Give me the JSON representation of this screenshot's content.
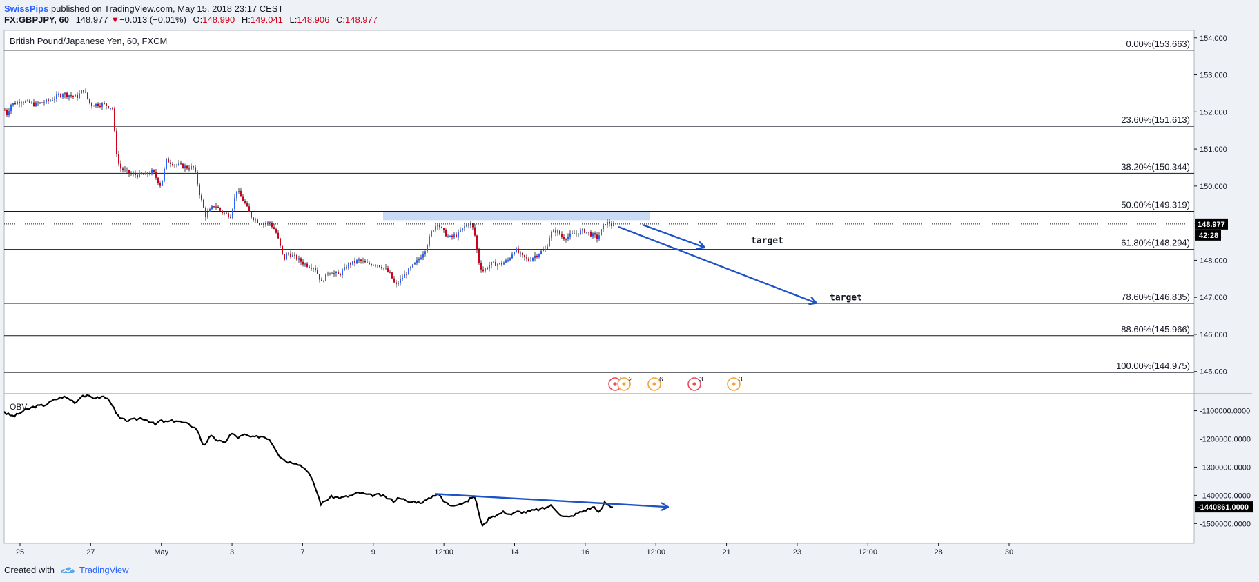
{
  "header": {
    "author": "SwissPips",
    "published": "published on TradingView.com, May 15, 2018 23:17 CEST",
    "symbol": "FX:GBPJPY, 60",
    "last": "148.977",
    "change_arrow": "▼",
    "change": "−0.013 (−0.01%)",
    "o_label": "O:",
    "o": "148.990",
    "h_label": "H:",
    "h": "149.041",
    "l_label": "L:",
    "l": "148.906",
    "c_label": "C:",
    "c": "148.977"
  },
  "footer": {
    "created_with": "Created with",
    "brand": "TradingView"
  },
  "colors": {
    "up": "#2962ff",
    "down": "#d0021b",
    "annotation": "#1e53c8",
    "zone": "#b8ccf0",
    "fib": "#131722",
    "obv": "#000000",
    "event_red": "#e54b5c",
    "event_orange": "#f3a33a"
  },
  "chart_data": [
    {
      "type": "candlestick",
      "title": "British Pound/Japanese Yen, 60, FXCM",
      "ylim": [
        144.4,
        154.2
      ],
      "yticks": [
        "154.000",
        "153.000",
        "152.000",
        "151.000",
        "150.000",
        "149.000",
        "148.000",
        "147.000",
        "146.000",
        "145.000"
      ],
      "last_price_label": "148.977",
      "countdown_label": "42:28",
      "x_labels": [
        "25",
        "27",
        "May",
        "3",
        "7",
        "9",
        "12:00",
        "14",
        "16",
        "12:00",
        "21",
        "23",
        "12:00",
        "28",
        "30"
      ],
      "price_path": [
        [
          0,
          152.5
        ],
        [
          8,
          151.9
        ],
        [
          15,
          152.2
        ],
        [
          30,
          152.3
        ],
        [
          50,
          152.2
        ],
        [
          70,
          152.3
        ],
        [
          90,
          152.5
        ],
        [
          110,
          152.4
        ],
        [
          120,
          152.6
        ],
        [
          130,
          152.2
        ],
        [
          150,
          152.2
        ],
        [
          162,
          152.1
        ],
        [
          167,
          151.0
        ],
        [
          172,
          150.5
        ],
        [
          190,
          150.3
        ],
        [
          210,
          150.3
        ],
        [
          220,
          150.4
        ],
        [
          232,
          150.0
        ],
        [
          240,
          150.7
        ],
        [
          250,
          150.6
        ],
        [
          270,
          150.5
        ],
        [
          280,
          150.5
        ],
        [
          288,
          149.8
        ],
        [
          297,
          149.2
        ],
        [
          310,
          149.5
        ],
        [
          320,
          149.3
        ],
        [
          333,
          149.2
        ],
        [
          342,
          149.9
        ],
        [
          352,
          149.6
        ],
        [
          362,
          149.2
        ],
        [
          375,
          149.0
        ],
        [
          390,
          149.0
        ],
        [
          398,
          148.8
        ],
        [
          403,
          148.5
        ],
        [
          410,
          148.0
        ],
        [
          415,
          148.2
        ],
        [
          425,
          148.1
        ],
        [
          440,
          147.9
        ],
        [
          455,
          147.8
        ],
        [
          465,
          147.4
        ],
        [
          475,
          147.7
        ],
        [
          490,
          147.6
        ],
        [
          505,
          147.9
        ],
        [
          520,
          148.0
        ],
        [
          530,
          147.9
        ],
        [
          545,
          147.9
        ],
        [
          555,
          147.8
        ],
        [
          565,
          147.6
        ],
        [
          572,
          147.3
        ],
        [
          580,
          147.5
        ],
        [
          595,
          147.8
        ],
        [
          605,
          148.0
        ],
        [
          615,
          148.3
        ],
        [
          625,
          148.8
        ],
        [
          633,
          149.0
        ],
        [
          640,
          148.8
        ],
        [
          650,
          148.6
        ],
        [
          662,
          148.7
        ],
        [
          672,
          148.9
        ],
        [
          680,
          149.0
        ],
        [
          686,
          148.8
        ],
        [
          692,
          148.0
        ],
        [
          698,
          147.7
        ],
        [
          710,
          147.9
        ],
        [
          725,
          147.9
        ],
        [
          735,
          148.0
        ],
        [
          745,
          148.3
        ],
        [
          755,
          148.1
        ],
        [
          765,
          148.0
        ],
        [
          780,
          148.2
        ],
        [
          790,
          148.3
        ],
        [
          796,
          148.7
        ],
        [
          805,
          148.8
        ],
        [
          815,
          148.6
        ],
        [
          830,
          148.7
        ],
        [
          845,
          148.8
        ],
        [
          855,
          148.7
        ],
        [
          865,
          148.6
        ],
        [
          870,
          148.8
        ],
        [
          875,
          149.0
        ],
        [
          882,
          149.0
        ],
        [
          888,
          148.9
        ]
      ],
      "fibonacci": [
        {
          "label": "0.00%(153.663)",
          "value": 153.663
        },
        {
          "label": "23.60%(151.613)",
          "value": 151.613
        },
        {
          "label": "38.20%(150.344)",
          "value": 150.344
        },
        {
          "label": "50.00%(149.319)",
          "value": 149.319
        },
        {
          "label": "61.80%(148.294)",
          "value": 148.294
        },
        {
          "label": "78.60%(146.835)",
          "value": 146.835
        },
        {
          "label": "88.60%(145.966)",
          "value": 145.966
        },
        {
          "label": "100.00%(144.975)",
          "value": 144.975
        }
      ],
      "resistance_zone": {
        "from_x": 555,
        "to_x": 942,
        "low": 149.08,
        "high": 149.3
      },
      "arrows": [
        {
          "x1": 932,
          "y1": 148.95,
          "x2": 1020,
          "y2": 148.35
        },
        {
          "x1": 896,
          "y1": 148.9,
          "x2": 1182,
          "y2": 146.85
        }
      ],
      "annotations": [
        {
          "text": "target",
          "x": 1088,
          "y": 148.45
        },
        {
          "text": "target",
          "x": 1202,
          "y": 146.92
        }
      ],
      "events": [
        {
          "x": 891,
          "count": "5",
          "color": "red"
        },
        {
          "x": 904,
          "count": "2",
          "color": "orange"
        },
        {
          "x": 948,
          "count": "6",
          "color": "orange"
        },
        {
          "x": 1006,
          "count": "3",
          "color": "red"
        },
        {
          "x": 1063,
          "count": "3",
          "color": "orange"
        }
      ]
    },
    {
      "type": "line",
      "title": "OBV",
      "ylim": [
        -1570000,
        -1040000
      ],
      "yticks": [
        "-1100000.0000",
        "-1200000.0000",
        "-1300000.0000",
        "-1400000.0000",
        "-1500000.0000"
      ],
      "last_value_label": "-1440861.0000",
      "obv_path": [
        [
          0,
          -1075000
        ],
        [
          8,
          -1110000
        ],
        [
          20,
          -1120000
        ],
        [
          35,
          -1100000
        ],
        [
          50,
          -1085000
        ],
        [
          65,
          -1080000
        ],
        [
          80,
          -1060000
        ],
        [
          92,
          -1050000
        ],
        [
          100,
          -1058000
        ],
        [
          110,
          -1072000
        ],
        [
          118,
          -1045000
        ],
        [
          128,
          -1050000
        ],
        [
          140,
          -1055000
        ],
        [
          150,
          -1050000
        ],
        [
          160,
          -1065000
        ],
        [
          168,
          -1110000
        ],
        [
          175,
          -1130000
        ],
        [
          185,
          -1135000
        ],
        [
          198,
          -1130000
        ],
        [
          205,
          -1125000
        ],
        [
          215,
          -1135000
        ],
        [
          225,
          -1150000
        ],
        [
          232,
          -1135000
        ],
        [
          240,
          -1140000
        ],
        [
          255,
          -1135000
        ],
        [
          275,
          -1150000
        ],
        [
          285,
          -1165000
        ],
        [
          295,
          -1225000
        ],
        [
          305,
          -1190000
        ],
        [
          315,
          -1205000
        ],
        [
          325,
          -1215000
        ],
        [
          335,
          -1180000
        ],
        [
          345,
          -1195000
        ],
        [
          355,
          -1185000
        ],
        [
          365,
          -1195000
        ],
        [
          380,
          -1190000
        ],
        [
          390,
          -1200000
        ],
        [
          398,
          -1230000
        ],
        [
          405,
          -1260000
        ],
        [
          415,
          -1280000
        ],
        [
          430,
          -1285000
        ],
        [
          445,
          -1310000
        ],
        [
          455,
          -1360000
        ],
        [
          465,
          -1430000
        ],
        [
          480,
          -1405000
        ],
        [
          495,
          -1408000
        ],
        [
          510,
          -1400000
        ],
        [
          520,
          -1390000
        ],
        [
          535,
          -1400000
        ],
        [
          550,
          -1398000
        ],
        [
          560,
          -1408000
        ],
        [
          570,
          -1420000
        ],
        [
          580,
          -1405000
        ],
        [
          590,
          -1425000
        ],
        [
          600,
          -1422000
        ],
        [
          610,
          -1425000
        ],
        [
          620,
          -1415000
        ],
        [
          628,
          -1400000
        ],
        [
          635,
          -1392000
        ],
        [
          642,
          -1420000
        ],
        [
          652,
          -1435000
        ],
        [
          665,
          -1430000
        ],
        [
          675,
          -1425000
        ],
        [
          682,
          -1410000
        ],
        [
          688,
          -1400000
        ],
        [
          694,
          -1470000
        ],
        [
          700,
          -1510000
        ],
        [
          710,
          -1475000
        ],
        [
          720,
          -1470000
        ],
        [
          730,
          -1458000
        ],
        [
          740,
          -1468000
        ],
        [
          750,
          -1458000
        ],
        [
          760,
          -1460000
        ],
        [
          770,
          -1455000
        ],
        [
          780,
          -1450000
        ],
        [
          790,
          -1445000
        ],
        [
          797,
          -1435000
        ],
        [
          805,
          -1450000
        ],
        [
          815,
          -1475000
        ],
        [
          825,
          -1477000
        ],
        [
          840,
          -1460000
        ],
        [
          852,
          -1448000
        ],
        [
          862,
          -1440000
        ],
        [
          868,
          -1465000
        ],
        [
          876,
          -1425000
        ],
        [
          882,
          -1436000
        ],
        [
          888,
          -1441000
        ]
      ],
      "arrow": {
        "x1": 630,
        "y1": -1395000,
        "x2": 967,
        "y2": -1441000
      }
    }
  ]
}
